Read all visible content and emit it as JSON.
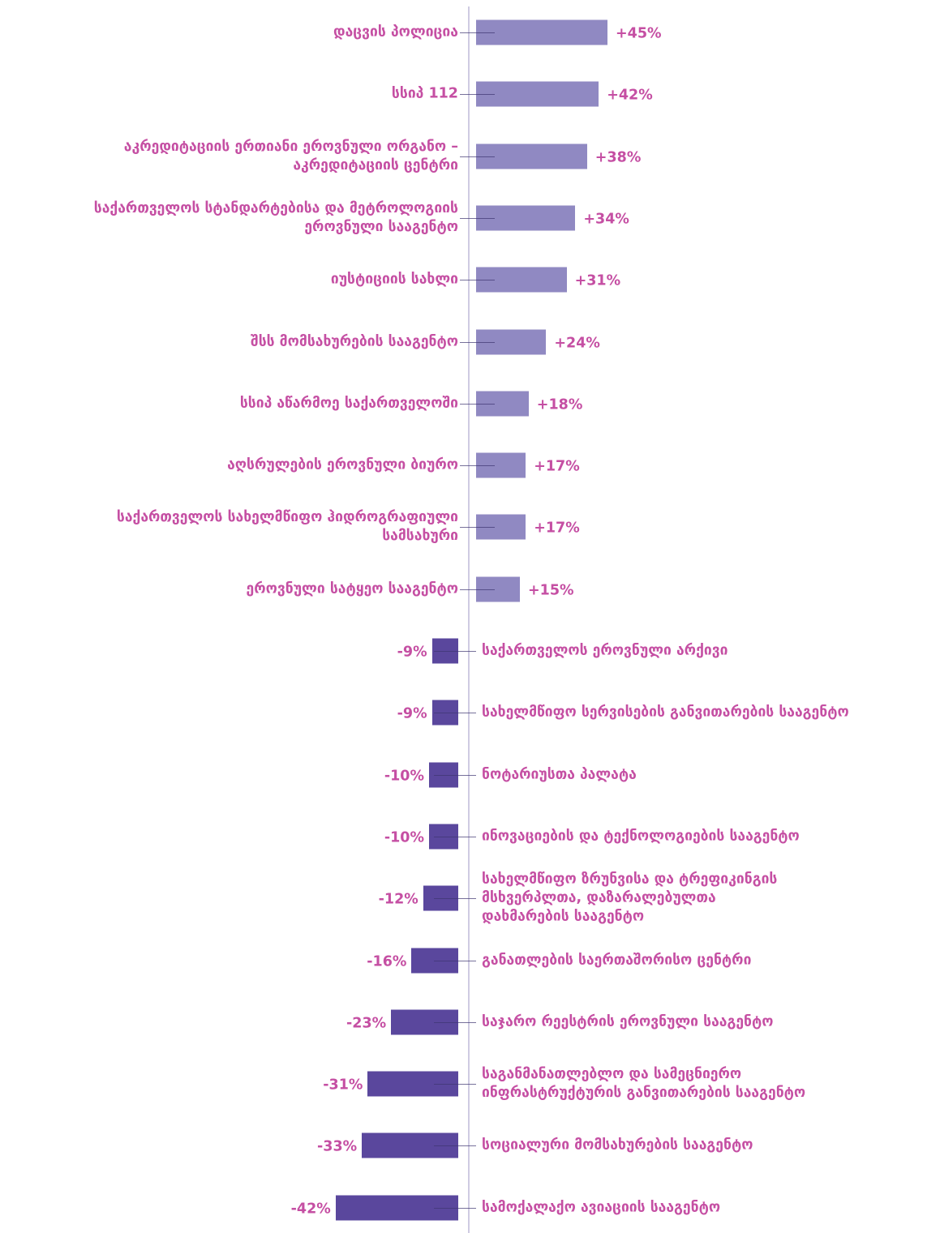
{
  "chart_data": {
    "type": "diverging-bar",
    "categories": [
      "დაცვის პოლიცია",
      "სსიპ 112",
      "აკრედიტაციის ერთიანი ეროვნული ორგანო –\nაკრედიტაციის ცენტრი",
      "საქართველოს სტანდარტებისა და მეტროლოგიის\nეროვნული სააგენტო",
      "იუსტიციის სახლი",
      "შსს მომსახურების სააგენტო",
      "სსიპ აწარმოე საქართველოში",
      "აღსრულების ეროვნული ბიურო",
      "საქართველოს სახელმწიფო ჰიდროგრაფიული\nსამსახური",
      "ეროვნული სატყეო სააგენტო",
      "საქართველოს ეროვნული არქივი",
      "სახელმწიფო სერვისების განვითარების სააგენტო",
      "ნოტარიუსთა პალატა",
      "ინოვაციების და ტექნოლოგიების სააგენტო",
      "სახელმწიფო ზრუნვისა და ტრეფიკინგის\nმსხვერპლთა, დაზარალებულთა\nდახმარების სააგენტო",
      "განათლების საერთაშორისო ცენტრი",
      "საჯარო რეესტრის ეროვნული სააგენტო",
      "საგანმანათლებლო და სამეცნიერო\nინფრასტრუქტურის განვითარების სააგენტო",
      "სოციალური მომსახურების სააგენტო",
      "სამოქალაქო ავიაციის სააგენტო"
    ],
    "values": [
      45,
      42,
      38,
      34,
      31,
      24,
      18,
      17,
      17,
      15,
      -9,
      -9,
      -10,
      -10,
      -12,
      -16,
      -23,
      -31,
      -33,
      -42
    ],
    "value_labels": [
      "+45%",
      "+42%",
      "+38%",
      "+34%",
      "+31%",
      "+24%",
      "+18%",
      "+17%",
      "+17%",
      "+15%",
      "-9%",
      "-9%",
      "-10%",
      "-10%",
      "-12%",
      "-16%",
      "-23%",
      "-31%",
      "-33%",
      "-42%"
    ],
    "color_positive": "#9089c2",
    "color_negative": "#5a479d"
  }
}
